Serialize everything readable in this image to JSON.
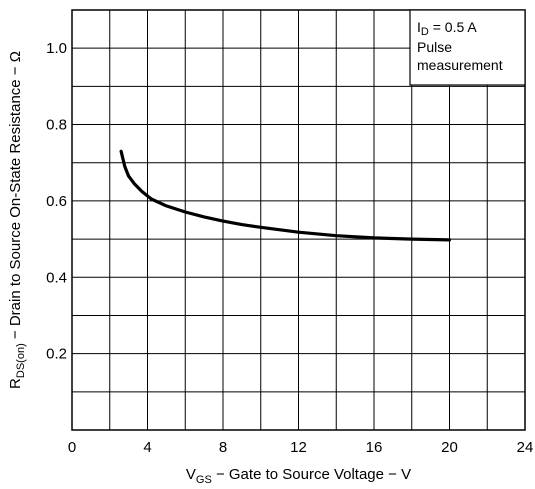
{
  "chart_data": {
    "type": "line",
    "xlabel": {
      "prefix": "V",
      "sub": "GS",
      "text": " − Gate to Source Voltage − V"
    },
    "ylabel": {
      "prefix": "R",
      "sub": "DS(on)",
      "text": " − Drain to Source On-State Resistance − Ω"
    },
    "xlim": [
      0,
      24
    ],
    "ylim": [
      0,
      1.1
    ],
    "xticks": [
      "0",
      "4",
      "8",
      "12",
      "16",
      "20",
      "24"
    ],
    "yticks": [
      "0.2",
      "0.4",
      "0.6",
      "0.8",
      "1.0"
    ],
    "grid": true,
    "annotation": {
      "line1_prefix": "I",
      "line1_sub": "D",
      "line1_text": " = 0.5 A",
      "line2": "Pulse",
      "line3": "measurement"
    },
    "series": [
      {
        "color": "#000000",
        "x": [
          2.6,
          2.8,
          3.0,
          3.3,
          3.7,
          4.2,
          5,
          6,
          7,
          8,
          9,
          10,
          12,
          14,
          16,
          18,
          20
        ],
        "y": [
          0.73,
          0.69,
          0.665,
          0.645,
          0.625,
          0.605,
          0.587,
          0.571,
          0.558,
          0.547,
          0.538,
          0.531,
          0.518,
          0.509,
          0.503,
          0.5,
          0.498
        ]
      }
    ]
  }
}
